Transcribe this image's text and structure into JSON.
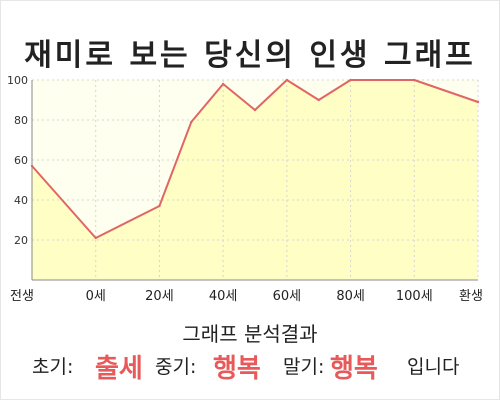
{
  "chart_data": {
    "type": "area",
    "title": "재미로 보는 당신의 인생 그래프",
    "x": [
      -20,
      0,
      20,
      30,
      40,
      50,
      60,
      70,
      80,
      100,
      120
    ],
    "y": [
      57,
      21,
      37,
      79,
      98,
      85,
      100,
      90,
      100,
      100,
      89
    ],
    "x_ticks": [
      "전생",
      "0세",
      "20세",
      "40세",
      "60세",
      "80세",
      "100세",
      "환생"
    ],
    "y_ticks": [
      "20",
      "40",
      "60",
      "80",
      "100"
    ],
    "ylim": [
      0,
      100
    ],
    "grid": true,
    "colors": {
      "line": "#e06666",
      "fill": "#ffffc5",
      "grid": "#d6d6d6"
    }
  },
  "summary": {
    "heading": "그래프 분석결과",
    "early_label": "초기:",
    "early_value": "출세",
    "middle_label": "중기:",
    "middle_value": "행복",
    "late_label": "말기:",
    "late_value": "행복",
    "ending": "입니다"
  }
}
